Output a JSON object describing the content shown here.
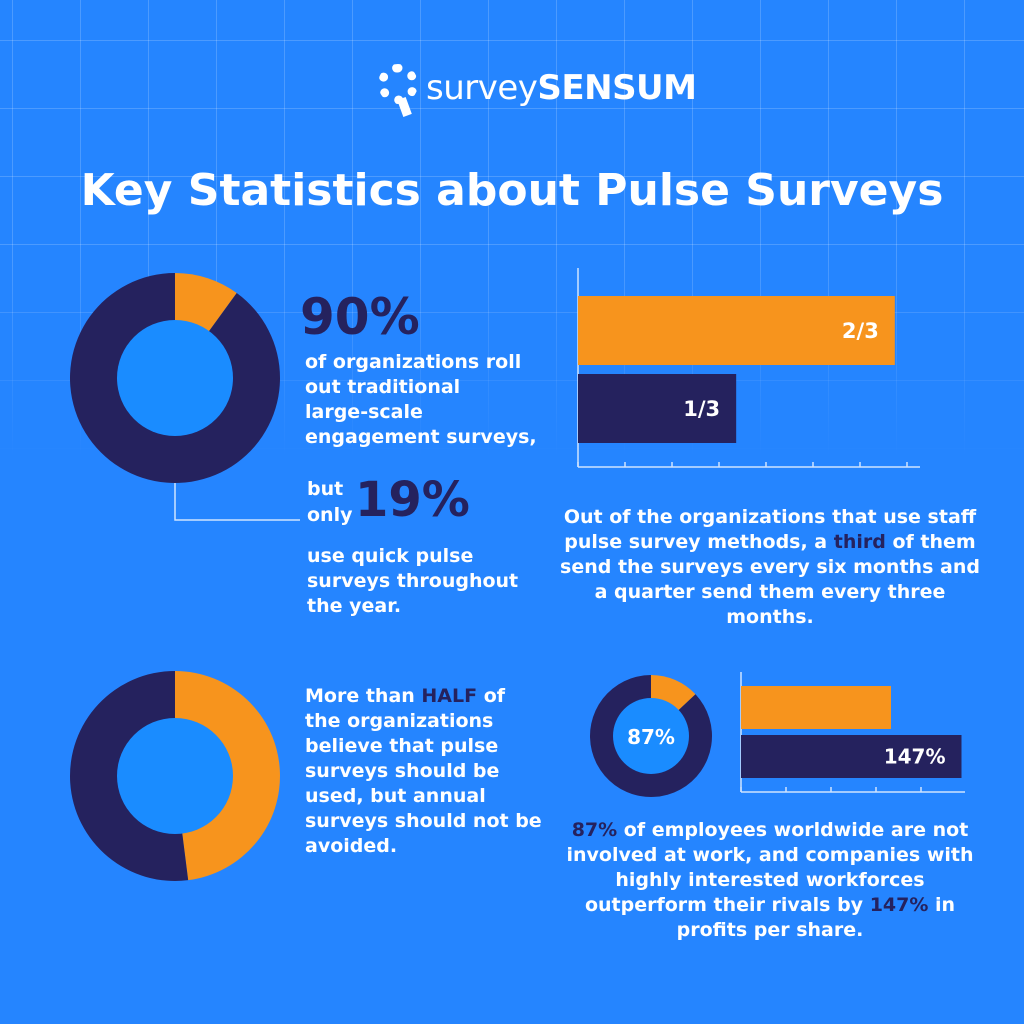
{
  "brand": {
    "logo_text_light": "survey",
    "logo_text_bold": "SENSUM"
  },
  "title": "Key Statistics about Pulse Surveys",
  "colors": {
    "background": "#2585ff",
    "navy": "#25225e",
    "orange": "#f7941d",
    "donut_center": "#1a8cff"
  },
  "stat1": {
    "big": "90%",
    "text_lines": [
      "of organizations roll",
      "out traditional",
      "large-scale",
      "engagement surveys,"
    ],
    "but": "but",
    "only": "only",
    "big2": "19%",
    "text2_lines": [
      "use quick pulse",
      "surveys throughout",
      "the year."
    ]
  },
  "stat2": {
    "bar_labels": [
      "2/3",
      "1/3"
    ],
    "text_lines": [
      [
        "Out of the organizations that use staff"
      ],
      [
        "pulse survey methods, a ",
        "third",
        " of them"
      ],
      [
        "send the surveys every six months and"
      ],
      [
        "a quarter send them every three"
      ],
      [
        "months."
      ]
    ]
  },
  "stat3": {
    "text_lines": [
      [
        "More than ",
        "HALF",
        " of"
      ],
      [
        "the organizations"
      ],
      [
        "believe that pulse"
      ],
      [
        "surveys should be"
      ],
      [
        "used, but annual"
      ],
      [
        "surveys should not be"
      ],
      [
        "avoided."
      ]
    ]
  },
  "stat4": {
    "donut_label": "87%",
    "bar_label": "147%",
    "text_lines": [
      [
        "87%",
        " of employees worldwide are not"
      ],
      [
        "involved at work, and companies with"
      ],
      [
        "highly interested workforces"
      ],
      [
        "outperform their rivals by ",
        "147%",
        " in"
      ],
      [
        "profits per share."
      ]
    ]
  },
  "chart_data": [
    {
      "type": "pie",
      "donut": true,
      "slices": [
        {
          "value": 10,
          "color": "#f7941d"
        },
        {
          "value": 90,
          "color": "#25225e"
        }
      ]
    },
    {
      "type": "bar",
      "orientation": "horizontal",
      "categories": [
        "2/3",
        "1/3"
      ],
      "values": [
        0.667,
        0.333
      ],
      "colors": [
        "#f7941d",
        "#25225e"
      ],
      "xlim": [
        0,
        1
      ]
    },
    {
      "type": "pie",
      "donut": true,
      "slices": [
        {
          "value": 48,
          "color": "#f7941d"
        },
        {
          "value": 52,
          "color": "#25225e"
        }
      ]
    },
    {
      "type": "pie",
      "donut": true,
      "label": "87%",
      "slices": [
        {
          "value": 13,
          "color": "#f7941d"
        },
        {
          "value": 87,
          "color": "#25225e"
        }
      ]
    },
    {
      "type": "bar",
      "orientation": "horizontal",
      "categories": [
        "",
        ""
      ],
      "values": [
        100,
        147
      ],
      "labels": [
        "",
        "147%"
      ],
      "colors": [
        "#f7941d",
        "#25225e"
      ]
    }
  ]
}
